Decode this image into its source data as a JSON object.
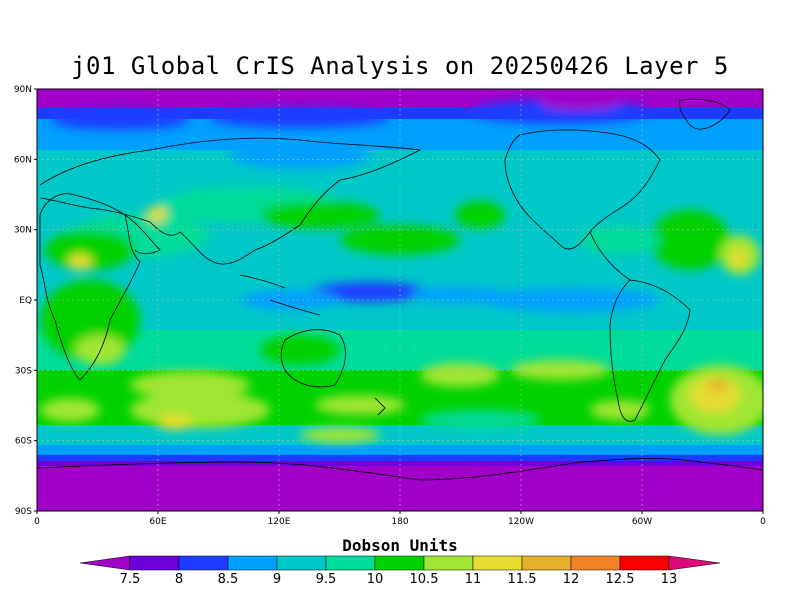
{
  "title": "j01 Global CrIS Analysis on 20250426 Layer 5",
  "map": {
    "lat_labels": [
      "90N",
      "60N",
      "30N",
      "EQ",
      "30S",
      "60S",
      "90S"
    ],
    "lon_labels": [
      "0",
      "60E",
      "120E",
      "180",
      "120W",
      "60W",
      "0"
    ]
  },
  "colorbar": {
    "title": "Dobson Units",
    "labels": [
      "7.5",
      "8",
      "8.5",
      "9",
      "9.5",
      "10",
      "10.5",
      "11",
      "11.5",
      "12",
      "12.5",
      "13"
    ],
    "colors": [
      "#a000c8",
      "#6e00dc",
      "#1e3cff",
      "#00a0ff",
      "#00c8c8",
      "#00dc9a",
      "#00d200",
      "#a0e632",
      "#e6dc32",
      "#e6af2d",
      "#f08228",
      "#fa0000",
      "#dc0a78"
    ]
  }
}
